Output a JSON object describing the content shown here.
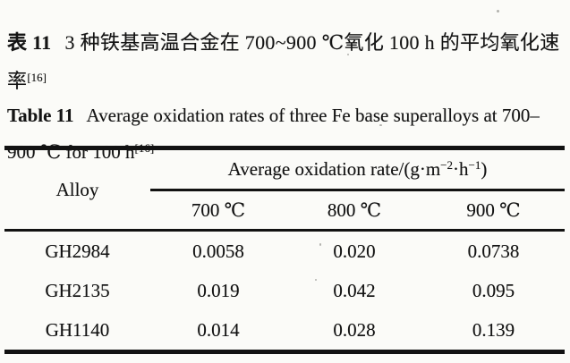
{
  "caption_zh": {
    "label": "表 11",
    "text": "3 种铁基高温合金在 700~900 ℃氧化 100 h 的平均氧化速率",
    "ref": "[16]"
  },
  "caption_en": {
    "label": "Table 11",
    "text": "Average oxidation rates of three Fe base superalloys at 700–900 ℃ for 100 h",
    "ref": "[16]"
  },
  "table": {
    "alloy_header": "Alloy",
    "spanner": {
      "prefix": "Average oxidation rate/(g·m",
      "sup_m": "−2",
      "mid": "·h",
      "sup_h": "−1",
      "suffix": ")"
    },
    "temp_headers": [
      "700 ℃",
      "800 ℃",
      "900 ℃"
    ],
    "rows": [
      {
        "alloy": "GH2984",
        "values": [
          "0.0058",
          "0.020",
          "0.0738"
        ]
      },
      {
        "alloy": "GH2135",
        "values": [
          "0.019",
          "0.042",
          "0.095"
        ]
      },
      {
        "alloy": "GH1140",
        "values": [
          "0.014",
          "0.028",
          "0.139"
        ]
      }
    ]
  },
  "chart_data": {
    "type": "table",
    "title": "Average oxidation rates of three Fe base superalloys at 700–900 ℃ for 100 h",
    "unit": "g·m−2·h−1",
    "columns": [
      "Alloy",
      "700 ℃",
      "800 ℃",
      "900 ℃"
    ],
    "rows": [
      [
        "GH2984",
        0.0058,
        0.02,
        0.0738
      ],
      [
        "GH2135",
        0.019,
        0.042,
        0.095
      ],
      [
        "GH1140",
        0.014,
        0.028,
        0.139
      ]
    ],
    "reference": "[16]"
  },
  "colors": {
    "paper_background": "#fbfbf8",
    "ink": "#121212"
  }
}
